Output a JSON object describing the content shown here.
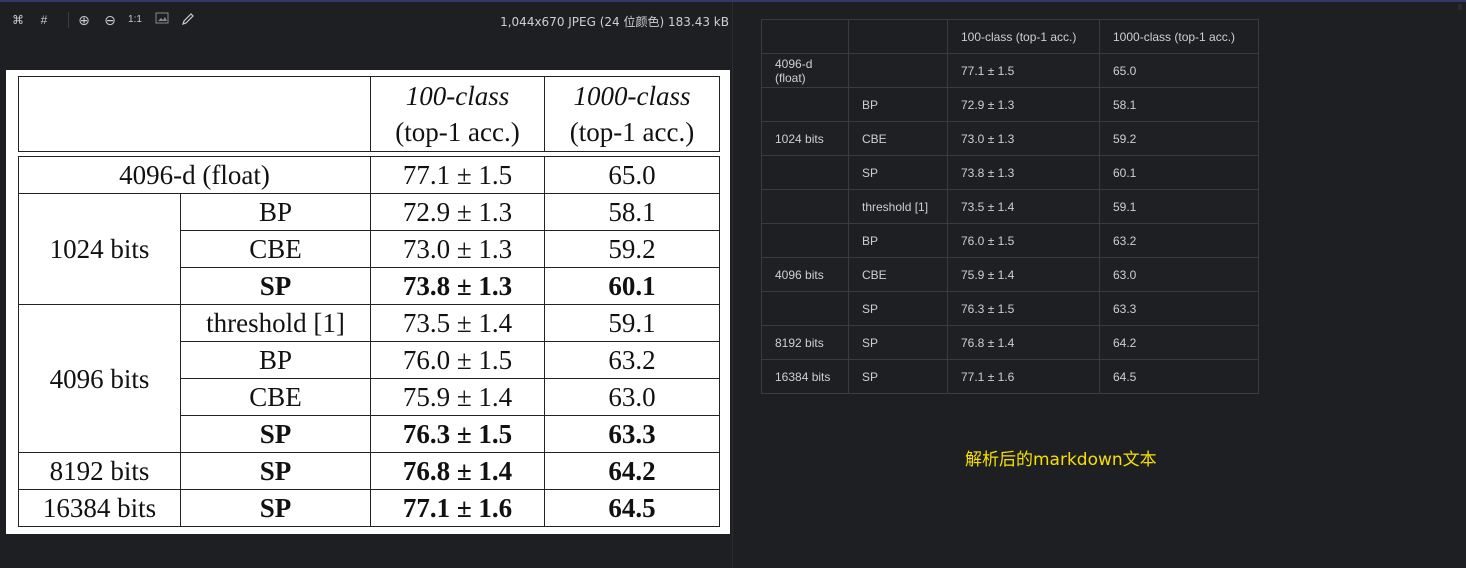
{
  "viewer": {
    "toolbar": {
      "icons": [
        "fit-icon",
        "crop-icon",
        "zoom-in-icon",
        "zoom-out-icon",
        "actual-size-icon",
        "image-icon",
        "edit-icon"
      ],
      "actual_size_label": "1:1",
      "image_info": "1,044x670 JPEG (24 位颜色) 183.43 kB"
    },
    "table": {
      "header": {
        "col100_line1": "100-class",
        "col100_line2": "(top-1 acc.)",
        "col1000_line1": "1000-class",
        "col1000_line2": "(top-1 acc.)"
      },
      "float_row": {
        "label": "4096-d (float)",
        "acc100": "77.1 ± 1.5",
        "acc1000": "65.0"
      },
      "g1024": {
        "label": "1024 bits",
        "rows": [
          {
            "method": "BP",
            "acc100": "72.9 ± 1.3",
            "acc1000": "58.1"
          },
          {
            "method": "CBE",
            "acc100": "73.0 ± 1.3",
            "acc1000": "59.2"
          },
          {
            "method": "SP",
            "acc100": "73.8 ± 1.3",
            "acc1000": "60.1"
          }
        ]
      },
      "g4096": {
        "label": "4096 bits",
        "rows": [
          {
            "method": "threshold [1]",
            "acc100": "73.5 ± 1.4",
            "acc1000": "59.1"
          },
          {
            "method": "BP",
            "acc100": "76.0 ± 1.5",
            "acc1000": "63.2"
          },
          {
            "method": "CBE",
            "acc100": "75.9 ± 1.4",
            "acc1000": "63.0"
          },
          {
            "method": "SP",
            "acc100": "76.3 ± 1.5",
            "acc1000": "63.3"
          }
        ]
      },
      "g8192": {
        "label": "8192 bits",
        "method": "SP",
        "acc100": "76.8 ± 1.4",
        "acc1000": "64.2"
      },
      "g16384": {
        "label": "16384 bits",
        "method": "SP",
        "acc100": "77.1 ± 1.6",
        "acc1000": "64.5"
      }
    }
  },
  "markdown": {
    "header": {
      "h1": "",
      "h2": "",
      "h3": "100-class (top-1 acc.)",
      "h4": "1000-class (top-1 acc.)"
    },
    "rows": [
      {
        "c1": "4096-d (float)",
        "c2": "",
        "c3": "77.1 ± 1.5",
        "c4": "65.0"
      },
      {
        "c1": "",
        "c2": "BP",
        "c3": "72.9 ± 1.3",
        "c4": "58.1"
      },
      {
        "c1": "1024 bits",
        "c2": "CBE",
        "c3": "73.0 ± 1.3",
        "c4": "59.2"
      },
      {
        "c1": "",
        "c2": "SP",
        "c3": "73.8 ± 1.3",
        "c4": "60.1"
      },
      {
        "c1": "",
        "c2": "threshold [1]",
        "c3": "73.5 ± 1.4",
        "c4": "59.1"
      },
      {
        "c1": "",
        "c2": "BP",
        "c3": "76.0 ± 1.5",
        "c4": "63.2"
      },
      {
        "c1": "4096 bits",
        "c2": "CBE",
        "c3": "75.9 ± 1.4",
        "c4": "63.0"
      },
      {
        "c1": "",
        "c2": "SP",
        "c3": "76.3 ± 1.5",
        "c4": "63.3"
      },
      {
        "c1": "8192 bits",
        "c2": "SP",
        "c3": "76.8 ± 1.4",
        "c4": "64.2"
      },
      {
        "c1": "16384 bits",
        "c2": "SP",
        "c3": "77.1 ± 1.6",
        "c4": "64.5"
      }
    ],
    "caption": "解析后的markdown文本"
  },
  "colors": {
    "background": "#1e1f22",
    "caption": "#f5e000",
    "sheet": "#ffffff"
  }
}
